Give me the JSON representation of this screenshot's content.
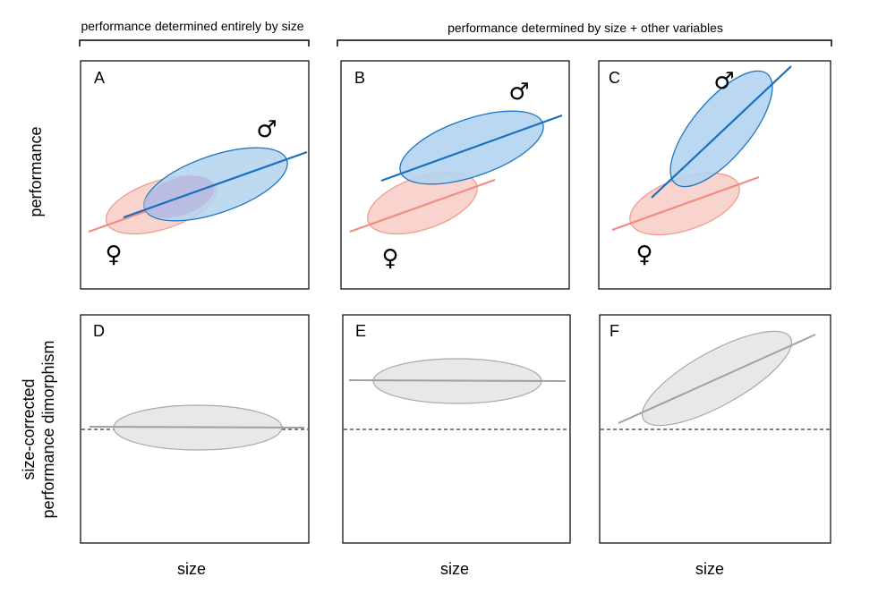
{
  "headers": {
    "left": "performance determined entirely by size",
    "right": "performance determined by size + other variables"
  },
  "axes": {
    "top_ylabel": "performance",
    "bottom_ylabel_line1": "size-corrected",
    "bottom_ylabel_line2": "performance dimorphism",
    "xlabel": "size"
  },
  "symbols": {
    "male": "♂",
    "female": "♀"
  },
  "panels": {
    "A": {
      "label": "A"
    },
    "B": {
      "label": "B"
    },
    "C": {
      "label": "C"
    },
    "D": {
      "label": "D"
    },
    "E": {
      "label": "E"
    },
    "F": {
      "label": "F"
    }
  },
  "colors": {
    "male_fill": "#b3d4ef",
    "male_stroke": "#1f77c4",
    "male_line": "#1a6fbd",
    "female_fill": "#f9d3cd",
    "female_stroke": "#f0978b",
    "female_line": "#f08c80",
    "overlap_fill": "#b8b6dd",
    "grey_fill": "#e8e8e8",
    "grey_stroke": "#a9a9a9",
    "grey_line": "#a0a0a0"
  }
}
